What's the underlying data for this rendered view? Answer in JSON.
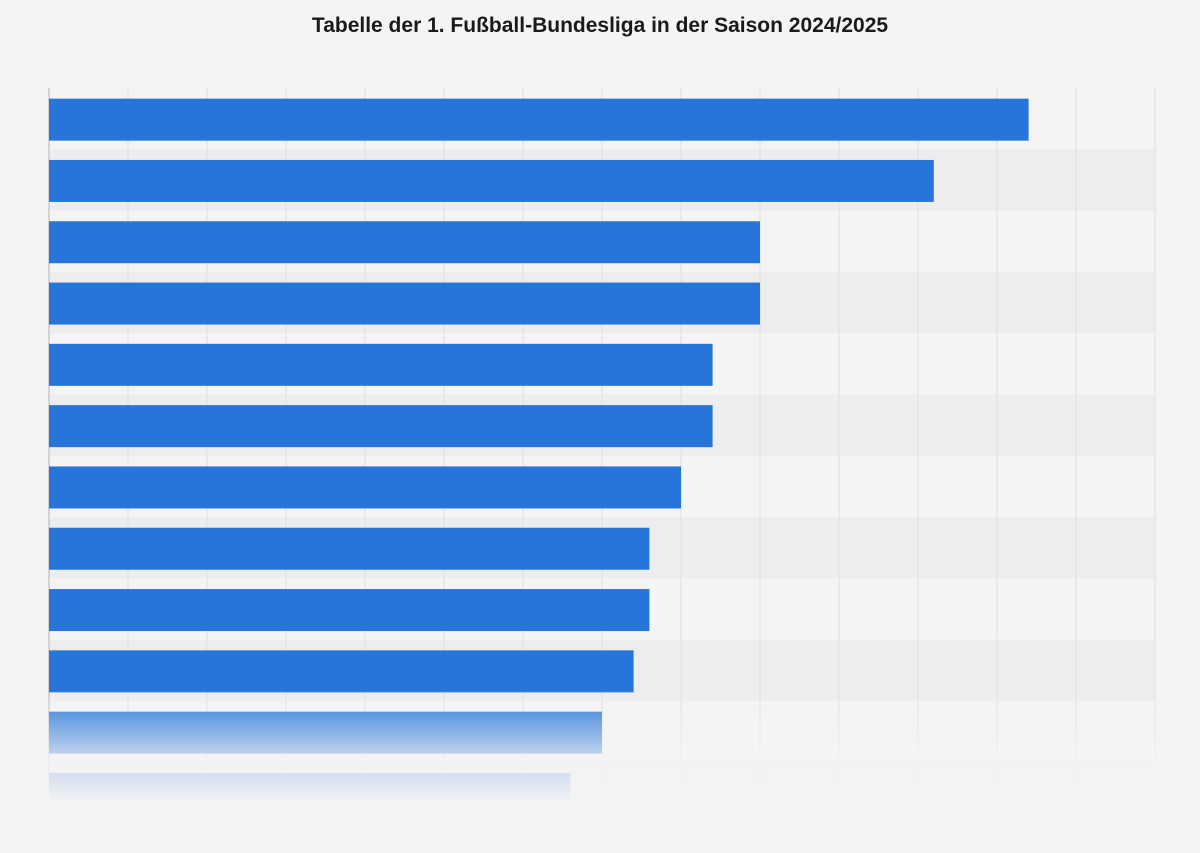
{
  "chart_data": {
    "type": "bar",
    "orientation": "horizontal",
    "title": "Tabelle der 1. Fußball-Bundesliga in der Saison 2024/2025",
    "values": [
      62,
      56,
      45,
      45,
      42,
      42,
      40,
      38,
      38,
      37,
      35,
      33
    ],
    "xlim": [
      0,
      70
    ],
    "grid": true,
    "colors": {
      "bar": "#2775d8",
      "grid": "#e2e2e4",
      "axis": "#c8c8cc",
      "band": "#ededef"
    }
  }
}
